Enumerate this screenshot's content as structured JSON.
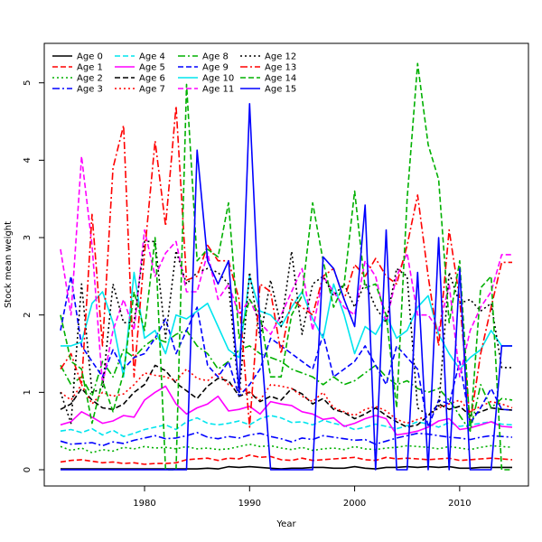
{
  "chart_data": {
    "type": "line",
    "title": "",
    "xlabel": "Year",
    "ylabel": "Stock mean weight",
    "xlim": [
      1972,
      2015
    ],
    "ylim": [
      0,
      5.3
    ],
    "xticks": [
      1980,
      1990,
      2000,
      2010
    ],
    "yticks": [
      0,
      1,
      2,
      3,
      4,
      5
    ],
    "grid": false,
    "legend_position": "top-left",
    "x": [
      1972,
      1973,
      1974,
      1975,
      1976,
      1977,
      1978,
      1979,
      1980,
      1981,
      1982,
      1983,
      1984,
      1985,
      1986,
      1987,
      1988,
      1989,
      1990,
      1991,
      1992,
      1993,
      1994,
      1995,
      1996,
      1997,
      1998,
      1999,
      2000,
      2001,
      2002,
      2003,
      2004,
      2005,
      2006,
      2007,
      2008,
      2009,
      2010,
      2011,
      2012,
      2013,
      2014,
      2015
    ],
    "series": [
      {
        "name": "Age 0",
        "color": "#000000",
        "dash": "solid",
        "values": [
          0.01,
          0.01,
          0.01,
          0.01,
          0.01,
          0.01,
          0.01,
          0.01,
          0.01,
          0.01,
          0.01,
          0.01,
          0.01,
          0.01,
          0.02,
          0.01,
          0.04,
          0.03,
          0.04,
          0.03,
          0.02,
          0.01,
          0.02,
          0.02,
          0.03,
          0.03,
          0.02,
          0.02,
          0.04,
          0.02,
          0.01,
          0.03,
          0.03,
          0.04,
          0.03,
          0.04,
          0.03,
          0.04,
          0.02,
          0.02,
          0.03,
          0.03,
          0.03,
          0.03
        ]
      },
      {
        "name": "Age 1",
        "color": "#ff0000",
        "dash": "6,3",
        "values": [
          0.1,
          0.12,
          0.13,
          0.11,
          0.09,
          0.1,
          0.08,
          0.09,
          0.07,
          0.08,
          0.08,
          0.09,
          0.13,
          0.14,
          0.15,
          0.12,
          0.15,
          0.14,
          0.19,
          0.16,
          0.17,
          0.13,
          0.12,
          0.15,
          0.12,
          0.13,
          0.14,
          0.15,
          0.16,
          0.13,
          0.12,
          0.16,
          0.14,
          0.15,
          0.14,
          0.13,
          0.14,
          0.15,
          0.12,
          0.13,
          0.14,
          0.15,
          0.14,
          0.13
        ]
      },
      {
        "name": "Age 2",
        "color": "#00b000",
        "dash": "2,3",
        "values": [
          0.3,
          0.25,
          0.28,
          0.22,
          0.26,
          0.24,
          0.29,
          0.27,
          0.3,
          0.28,
          0.29,
          0.27,
          0.3,
          0.27,
          0.28,
          0.26,
          0.27,
          0.3,
          0.33,
          0.3,
          0.31,
          0.28,
          0.26,
          0.29,
          0.25,
          0.27,
          0.28,
          0.26,
          0.3,
          0.27,
          0.26,
          0.28,
          0.29,
          0.31,
          0.3,
          0.29,
          0.27,
          0.3,
          0.28,
          0.26,
          0.29,
          0.31,
          0.3,
          0.29
        ]
      },
      {
        "name": "Age 3",
        "color": "#0000ff",
        "dash": "8,3,2,3",
        "values": [
          0.37,
          0.33,
          0.34,
          0.35,
          0.31,
          0.36,
          0.34,
          0.38,
          0.41,
          0.44,
          0.4,
          0.41,
          0.44,
          0.48,
          0.42,
          0.4,
          0.43,
          0.41,
          0.45,
          0.47,
          0.43,
          0.4,
          0.36,
          0.41,
          0.39,
          0.44,
          0.42,
          0.4,
          0.38,
          0.39,
          0.33,
          0.37,
          0.41,
          0.44,
          0.47,
          0.46,
          0.44,
          0.42,
          0.41,
          0.39,
          0.42,
          0.44,
          0.43,
          0.42
        ]
      },
      {
        "name": "Age 4",
        "color": "#00e5ee",
        "dash": "6,3",
        "values": [
          0.5,
          0.52,
          0.48,
          0.53,
          0.45,
          0.51,
          0.43,
          0.47,
          0.52,
          0.55,
          0.58,
          0.52,
          0.62,
          0.67,
          0.6,
          0.58,
          0.6,
          0.63,
          0.58,
          0.66,
          0.7,
          0.67,
          0.61,
          0.62,
          0.58,
          0.64,
          0.6,
          0.57,
          0.52,
          0.55,
          0.59,
          0.56,
          0.53,
          0.57,
          0.62,
          0.59,
          0.55,
          0.61,
          0.56,
          0.58,
          0.6,
          0.62,
          0.59,
          0.58
        ]
      },
      {
        "name": "Age 5",
        "color": "#ff00ff",
        "dash": "solid",
        "values": [
          0.58,
          0.62,
          0.75,
          0.68,
          0.6,
          0.63,
          0.7,
          0.68,
          0.9,
          1.0,
          1.08,
          0.85,
          0.72,
          0.8,
          0.85,
          0.95,
          0.76,
          0.78,
          0.82,
          0.72,
          0.88,
          0.85,
          0.83,
          0.75,
          0.72,
          0.65,
          0.67,
          0.56,
          0.6,
          0.66,
          0.7,
          0.66,
          0.45,
          0.47,
          0.5,
          0.55,
          0.63,
          0.66,
          0.52,
          0.54,
          0.58,
          0.62,
          0.56,
          0.55
        ]
      },
      {
        "name": "Age 6",
        "color": "#000000",
        "dash": "6,3",
        "values": [
          0.78,
          0.85,
          1.05,
          0.9,
          0.8,
          0.78,
          0.85,
          1.0,
          1.1,
          1.35,
          1.28,
          1.12,
          1.02,
          0.92,
          1.08,
          1.18,
          1.15,
          0.95,
          1.0,
          0.88,
          0.95,
          0.9,
          1.05,
          0.98,
          0.85,
          0.92,
          0.78,
          0.74,
          0.66,
          0.72,
          0.8,
          0.7,
          0.62,
          0.55,
          0.58,
          0.7,
          0.85,
          0.78,
          0.82,
          0.7,
          0.75,
          0.8,
          0.78,
          0.77
        ]
      },
      {
        "name": "Age 7",
        "color": "#ff0000",
        "dash": "2,3",
        "values": [
          1.0,
          0.9,
          1.1,
          0.85,
          1.0,
          0.95,
          0.98,
          1.1,
          1.25,
          1.22,
          1.2,
          1.15,
          1.3,
          1.18,
          1.15,
          1.25,
          1.1,
          1.05,
          1.0,
          0.9,
          1.1,
          1.08,
          1.05,
          0.95,
          0.88,
          1.0,
          0.8,
          0.75,
          0.7,
          0.78,
          0.82,
          0.76,
          0.65,
          0.6,
          0.65,
          0.7,
          0.8,
          0.85,
          0.9,
          0.75,
          0.82,
          0.88,
          0.85,
          0.8
        ]
      },
      {
        "name": "Age 8",
        "color": "#00b000",
        "dash": "8,3,2,3",
        "values": [
          1.35,
          1.1,
          1.2,
          0.95,
          1.4,
          1.2,
          1.55,
          1.45,
          1.6,
          1.7,
          1.65,
          1.75,
          1.8,
          1.6,
          1.5,
          1.3,
          1.4,
          1.55,
          1.6,
          1.5,
          1.45,
          1.4,
          1.3,
          1.25,
          1.2,
          1.1,
          1.2,
          1.1,
          1.15,
          1.25,
          1.35,
          1.2,
          1.1,
          1.15,
          1.05,
          1.0,
          1.05,
          0.9,
          0.7,
          0.5,
          1.1,
          0.8,
          0.92,
          0.9
        ]
      },
      {
        "name": "Age 9",
        "color": "#0000ff",
        "dash": "6,3",
        "values": [
          1.8,
          2.5,
          1.6,
          1.4,
          1.2,
          1.55,
          1.3,
          1.45,
          1.5,
          1.7,
          1.95,
          1.5,
          1.8,
          2.1,
          1.35,
          1.2,
          1.4,
          0.95,
          1.1,
          1.3,
          1.7,
          1.6,
          1.5,
          1.4,
          1.3,
          1.75,
          1.2,
          1.3,
          1.4,
          1.6,
          1.35,
          1.1,
          1.6,
          1.45,
          1.3,
          0.55,
          0.9,
          0.85,
          1.4,
          0.6,
          0.8,
          1.05,
          0.78,
          0.77
        ]
      },
      {
        "name": "Age 10",
        "color": "#00e5ee",
        "dash": "solid",
        "values": [
          1.6,
          1.6,
          1.65,
          2.15,
          2.3,
          1.9,
          1.2,
          2.55,
          1.7,
          1.8,
          1.5,
          2.0,
          1.95,
          2.05,
          2.15,
          1.85,
          1.55,
          1.45,
          2.5,
          2.05,
          2.0,
          1.85,
          2.1,
          2.3,
          1.95,
          1.7,
          2.4,
          2.0,
          1.5,
          1.85,
          1.75,
          2.0,
          1.7,
          1.8,
          2.1,
          2.25,
          1.75,
          1.5,
          1.3,
          1.45,
          1.55,
          1.8,
          1.6,
          1.6
        ]
      },
      {
        "name": "Age 11",
        "color": "#ff00ff",
        "dash": "6,3",
        "values": [
          2.85,
          2.0,
          4.05,
          2.9,
          1.1,
          1.8,
          2.2,
          1.8,
          3.1,
          2.5,
          2.8,
          2.95,
          2.3,
          2.3,
          2.8,
          2.2,
          2.4,
          2.0,
          2.2,
          1.9,
          1.75,
          2.0,
          2.3,
          2.6,
          1.8,
          2.5,
          2.3,
          2.1,
          2.0,
          2.7,
          2.5,
          1.9,
          2.5,
          2.8,
          2.0,
          2.0,
          1.8,
          2.4,
          1.2,
          1.8,
          2.1,
          2.3,
          2.78,
          2.78
        ]
      },
      {
        "name": "Age 12",
        "color": "#000000",
        "dash": "2,3",
        "values": [
          1.0,
          0.6,
          2.4,
          1.0,
          1.05,
          2.4,
          1.9,
          1.9,
          2.95,
          2.95,
          1.7,
          2.83,
          2.4,
          2.55,
          2.6,
          2.55,
          2.4,
          0.95,
          2.55,
          1.7,
          2.45,
          1.85,
          2.82,
          1.75,
          2.4,
          2.5,
          2.25,
          2.4,
          2.1,
          2.42,
          2.1,
          1.9,
          2.6,
          2.5,
          0.8,
          0.7,
          0.8,
          2.55,
          2.15,
          2.2,
          2.05,
          2.15,
          1.32,
          1.32
        ]
      },
      {
        "name": "Age 13",
        "color": "#ff0000",
        "dash": "8,3,2,3",
        "values": [
          1.3,
          1.5,
          1.1,
          3.3,
          1.6,
          3.9,
          4.45,
          1.2,
          2.8,
          4.25,
          3.15,
          4.7,
          2.45,
          2.5,
          2.9,
          2.7,
          2.7,
          2.2,
          0.55,
          2.4,
          2.3,
          1.5,
          2.2,
          2.1,
          2.0,
          2.5,
          2.6,
          2.2,
          2.65,
          2.5,
          2.73,
          2.5,
          2.4,
          2.9,
          3.55,
          2.5,
          1.6,
          3.1,
          2.2,
          0.6,
          1.5,
          2.1,
          2.68,
          2.68
        ]
      },
      {
        "name": "Age 14",
        "color": "#00b000",
        "dash": "6,3",
        "values": [
          2.0,
          1.4,
          1.3,
          0.6,
          1.15,
          0.75,
          1.25,
          2.3,
          1.8,
          3.0,
          0.0,
          0.0,
          4.98,
          2.7,
          2.85,
          2.75,
          3.45,
          1.7,
          2.2,
          2.0,
          1.2,
          1.2,
          2.0,
          2.25,
          3.45,
          2.7,
          2.1,
          2.4,
          3.6,
          2.35,
          2.4,
          2.0,
          0.8,
          3.5,
          5.25,
          4.2,
          3.75,
          1.9,
          2.7,
          0.5,
          2.35,
          2.5,
          0.0,
          0.0
        ]
      },
      {
        "name": "Age 15",
        "color": "#0000ff",
        "dash": "solid",
        "values": [
          0.0,
          0.0,
          0.0,
          0.0,
          0.0,
          0.0,
          0.0,
          0.0,
          0.0,
          0.0,
          0.0,
          0.0,
          0.0,
          4.13,
          2.7,
          2.4,
          2.7,
          1.0,
          4.73,
          1.8,
          0.0,
          0.0,
          0.0,
          0.0,
          0.0,
          2.75,
          2.6,
          2.2,
          1.85,
          3.42,
          0.0,
          3.1,
          0.0,
          0.0,
          2.55,
          0.0,
          3.0,
          0.0,
          2.6,
          0.0,
          0.0,
          0.0,
          1.6,
          1.6
        ]
      }
    ]
  }
}
